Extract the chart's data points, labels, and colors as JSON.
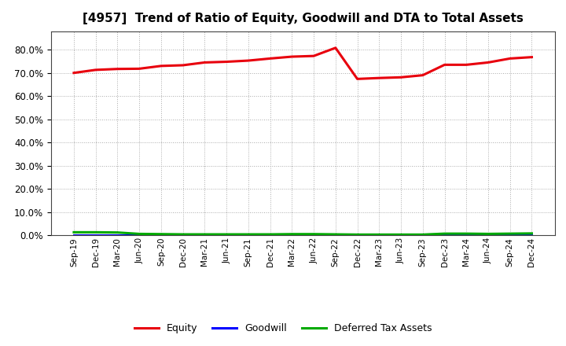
{
  "title": "[4957]  Trend of Ratio of Equity, Goodwill and DTA to Total Assets",
  "x_labels": [
    "Sep-19",
    "Dec-19",
    "Mar-20",
    "Jun-20",
    "Sep-20",
    "Dec-20",
    "Mar-21",
    "Jun-21",
    "Sep-21",
    "Dec-21",
    "Mar-22",
    "Jun-22",
    "Sep-22",
    "Dec-22",
    "Mar-23",
    "Jun-23",
    "Sep-23",
    "Dec-23",
    "Mar-24",
    "Jun-24",
    "Sep-24",
    "Dec-24"
  ],
  "equity": [
    0.7,
    0.713,
    0.717,
    0.718,
    0.73,
    0.733,
    0.745,
    0.748,
    0.753,
    0.762,
    0.77,
    0.773,
    0.808,
    0.674,
    0.678,
    0.681,
    0.69,
    0.735,
    0.735,
    0.745,
    0.762,
    0.768
  ],
  "goodwill": [
    0.0,
    0.0,
    0.0,
    0.0,
    0.0,
    0.0,
    0.0,
    0.0,
    0.0,
    0.0,
    0.0,
    0.0,
    0.0,
    0.0,
    0.0,
    0.0,
    0.0,
    0.0,
    0.0,
    0.0,
    0.0,
    0.0
  ],
  "dta": [
    0.013,
    0.013,
    0.012,
    0.006,
    0.005,
    0.004,
    0.004,
    0.004,
    0.004,
    0.004,
    0.005,
    0.005,
    0.004,
    0.003,
    0.003,
    0.003,
    0.003,
    0.007,
    0.007,
    0.006,
    0.007,
    0.008
  ],
  "equity_color": "#e8000d",
  "goodwill_color": "#0000ff",
  "dta_color": "#00aa00",
  "background_color": "#ffffff",
  "grid_color": "#aaaaaa",
  "ylim": [
    0.0,
    0.88
  ],
  "yticks": [
    0.0,
    0.1,
    0.2,
    0.3,
    0.4,
    0.5,
    0.6,
    0.7,
    0.8
  ],
  "legend_equity": "Equity",
  "legend_goodwill": "Goodwill",
  "legend_dta": "Deferred Tax Assets",
  "line_width": 2.2,
  "title_fontsize": 11
}
